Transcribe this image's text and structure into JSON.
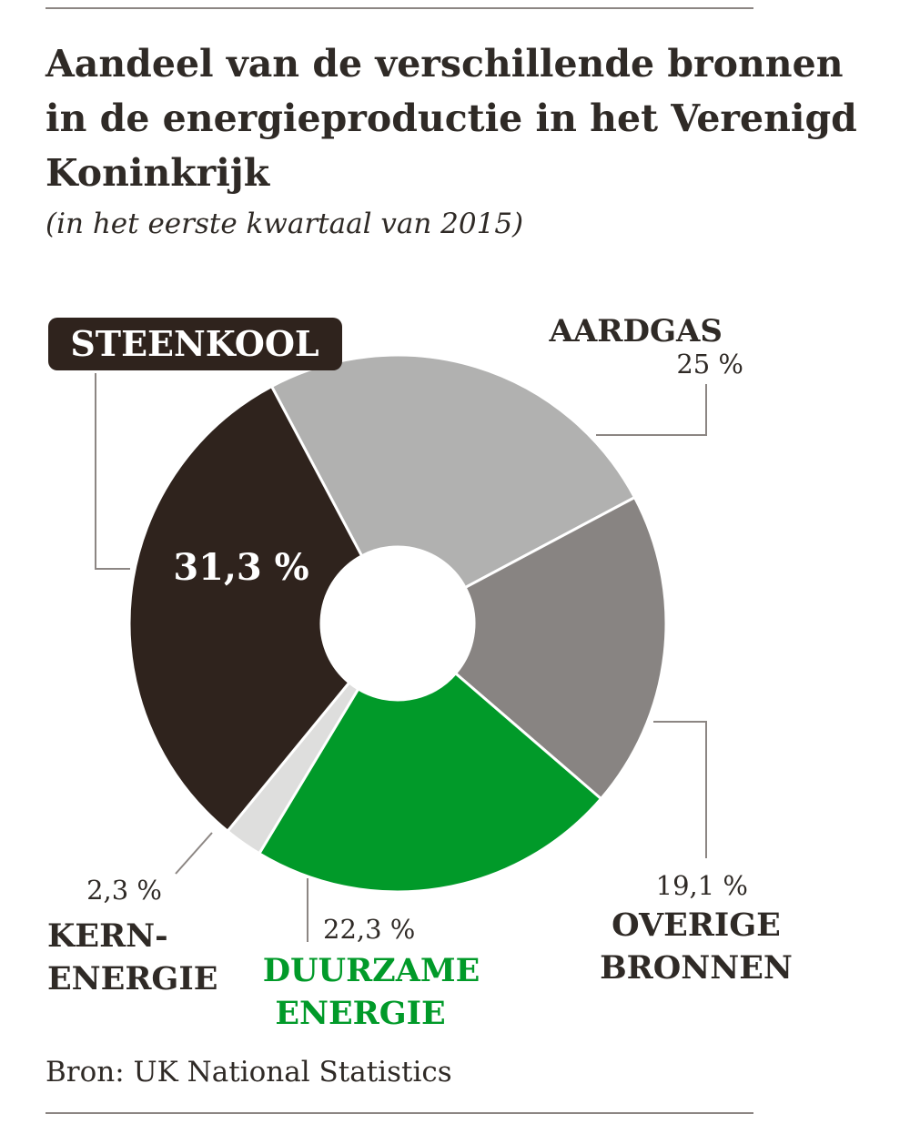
{
  "title": "Aandeel van de verschillende bronnen in de energieproductie in het Verenigd Koninkrijk",
  "subtitle": "(in het eerste kwartaal van 2015)",
  "source": "Bron: UK National Statistics",
  "chart_data": {
    "type": "pie",
    "variant": "donut",
    "title": "Aandeel van de verschillende bronnen in de energieproductie in het Verenigd Koninkrijk",
    "subtitle": "(in het eerste kwartaal van 2015)",
    "start_slice": "AARDGAS",
    "direction": "clockwise",
    "slices": [
      {
        "label": "AARDGAS",
        "label_lines": [
          "AARDGAS"
        ],
        "value": 25,
        "value_text": "25 %",
        "color": "#b1b1b0"
      },
      {
        "label": "OVERIGE BRONNEN",
        "label_lines": [
          "OVERIGE",
          "BRONNEN"
        ],
        "value": 19.1,
        "value_text": "19,1 %",
        "color": "#888482"
      },
      {
        "label": "DUURZAME ENERGIE",
        "label_lines": [
          "DUURZAME",
          "ENERGIE"
        ],
        "value": 22.3,
        "value_text": "22,3 %",
        "color": "#019a29"
      },
      {
        "label": "KERN-ENERGIE",
        "label_lines": [
          "KERN-",
          "ENERGIE"
        ],
        "value": 2.3,
        "value_text": "2,3 %",
        "color": "#dededd"
      },
      {
        "label": "STEENKOOL",
        "label_lines": [
          "STEENKOOL"
        ],
        "value": 31.3,
        "value_text": "31,3 %",
        "color": "#2f231d"
      }
    ]
  },
  "colors": {
    "text": "#2f2a26",
    "green_label": "#019a29",
    "leader_line": "#8c8683"
  }
}
